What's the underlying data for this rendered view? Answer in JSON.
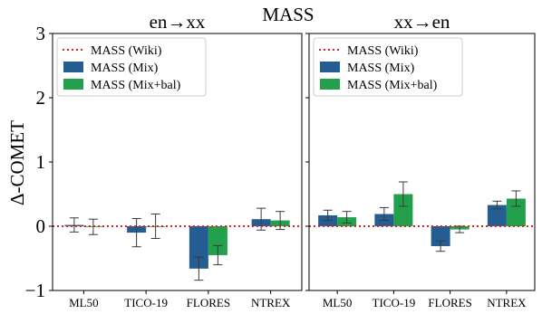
{
  "chart_data": {
    "type": "bar",
    "title": "MASS",
    "ylabel": "Δ-COMET",
    "ylim": [
      -1,
      3
    ],
    "yticks": [
      -1,
      0,
      1,
      2,
      3
    ],
    "ytick_labels": [
      "−1",
      "0",
      "1",
      "2",
      "3"
    ],
    "categories": [
      "ML50",
      "TICO-19",
      "FLORES",
      "NTREX"
    ],
    "legend_position": "top-left",
    "colors": {
      "MASS (Wiki)": "#d62728",
      "MASS (Mix)": "#245d91",
      "MASS (Mix+bal)": "#22a04b"
    },
    "legend": [
      {
        "label": "MASS (Wiki)",
        "style": "dotted-line"
      },
      {
        "label": "MASS (Mix)",
        "style": "patch"
      },
      {
        "label": "MASS (Mix+bal)",
        "style": "patch"
      }
    ],
    "panels": [
      {
        "title": "en→xx",
        "reference_line": {
          "name": "MASS (Wiki)",
          "value": 0
        },
        "series": [
          {
            "name": "MASS (Mix)",
            "values": [
              0.02,
              -0.1,
              -0.66,
              0.11
            ],
            "error": [
              0.11,
              0.22,
              0.18,
              0.17
            ]
          },
          {
            "name": "MASS (Mix+bal)",
            "values": [
              -0.01,
              0.0,
              -0.45,
              0.09
            ],
            "error": [
              0.12,
              0.19,
              0.15,
              0.14
            ]
          }
        ]
      },
      {
        "title": "xx→en",
        "reference_line": {
          "name": "MASS (Wiki)",
          "value": 0
        },
        "series": [
          {
            "name": "MASS (Mix)",
            "values": [
              0.17,
              0.19,
              -0.31,
              0.33
            ],
            "error": [
              0.08,
              0.1,
              0.08,
              0.06
            ]
          },
          {
            "name": "MASS (Mix+bal)",
            "values": [
              0.14,
              0.5,
              -0.05,
              0.43
            ],
            "error": [
              0.09,
              0.19,
              0.05,
              0.12
            ]
          }
        ]
      }
    ]
  }
}
